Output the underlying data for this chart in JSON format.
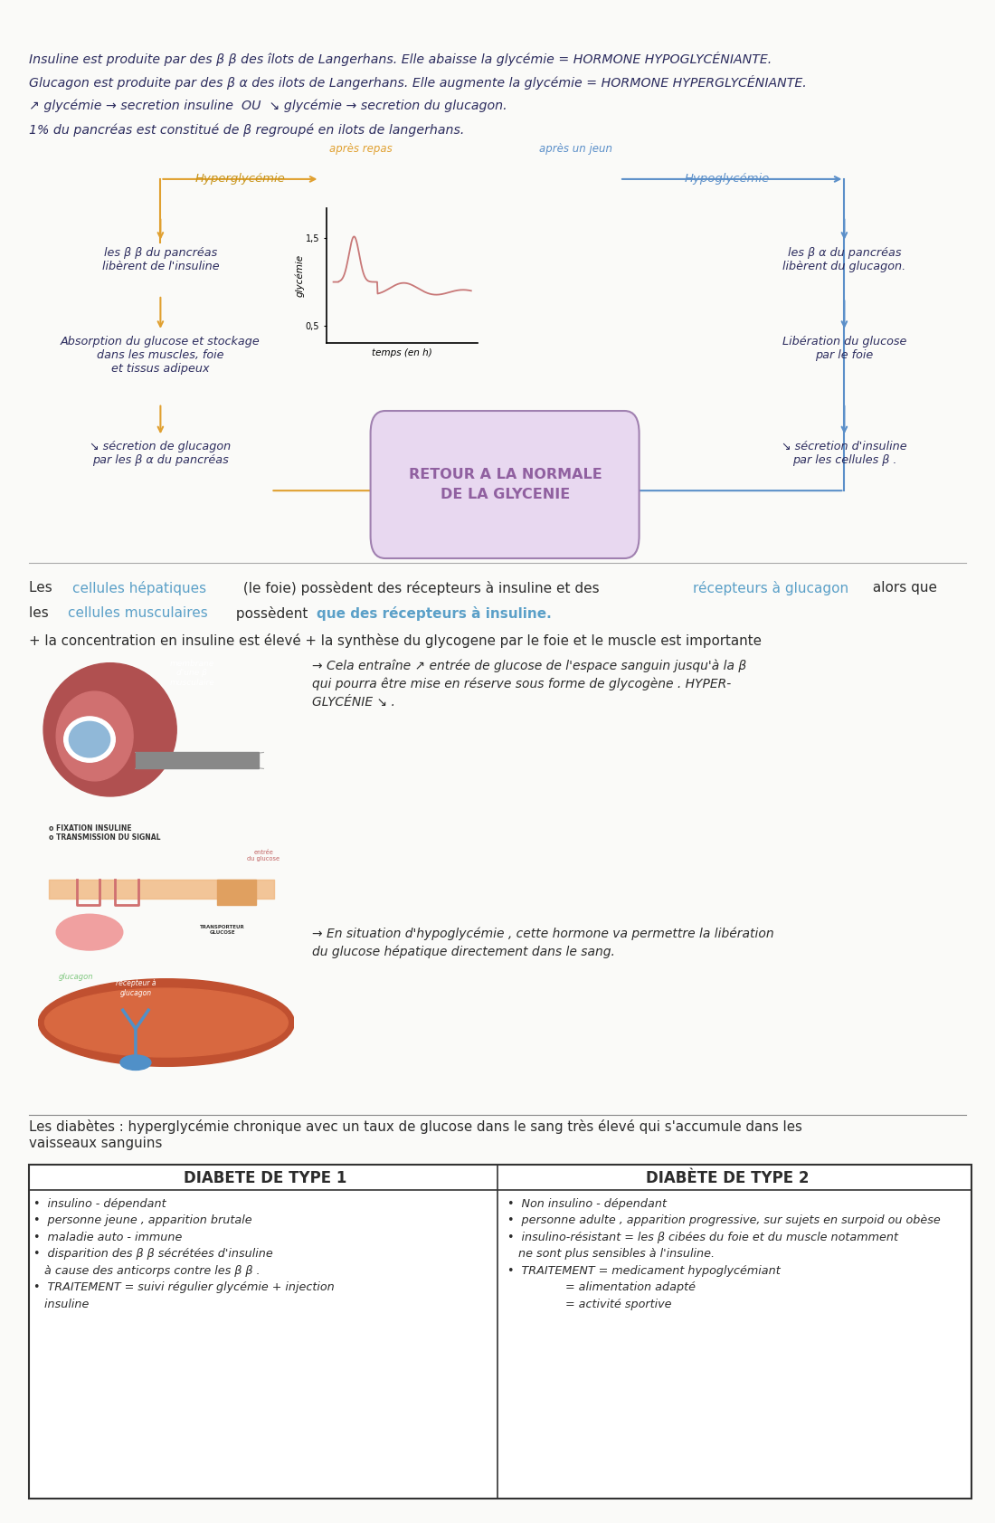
{
  "bg_color": "#fafaf8",
  "page_width": 10.8,
  "page_height": 16.63,
  "line1": "Insuline est produite par des β β des îlots de Langerhans. Elle abaisse la glycémie = HORMONE HYPOGLYCÉNIANTE.",
  "line2": "Glucagon est produite par des β α des ilots de Langerhans. Elle augmente la glycémie = HORMONE HYPERGLYCÉNIANTE.",
  "line3": "↗ glycémie → secretion insuline  OU  ↘ glycémie → secretion du glucagon.",
  "line4": "1% du pancréas est constitué de β regroupé en ilots de langerhans.",
  "text_color": "#2c2c5e",
  "orange": "#c8941a",
  "orange_arrow": "#e0a030",
  "blue": "#5b8fc9",
  "dark_text": "#2c2c2c",
  "retour_text": "RETOUR A LA NORMALE\nDE LA GLYCENIE",
  "retour_boxcolor": "#e8d8f0",
  "retour_edgecolor": "#a080b0",
  "retour_textcolor": "#9060a0",
  "annot1": "→ Cela entraîne ↗ entrée de glucose de l'espace sanguin jusqu'à la β\nqui pourra être mise en réserve sous forme de glycogène . HYPER-\nGLYCÉNIE ↘ .",
  "annot2": "→ En situation d'hypoglycémie , cette hormone va permettre la libération\ndu glucose hépatique directement dans le sang.",
  "diabetes_intro": "Les diabètes : hyperglycémie chronique avec un taux de glucose dans le sang très élevé qui s'accumule dans les\nvaisseaux sanguins",
  "diabetes_type1": "•  insulino - dépendant\n•  personne jeune , apparition brutale\n•  maladie auto - immune\n•  disparition des β β sécrétées d'insuline\n   à cause des anticorps contre les β β .\n•  TRAITEMENT = suivi régulier glycémie + injection\n   insuline",
  "diabetes_type2": "•  Non insulino - dépendant\n•  personne adulte , apparition progressive, sur sujets en surpoid ou obèse\n•  insulino-résistant = les β cibées du foie et du muscle notamment\n   ne sont plus sensibles à l'insuline.\n•  TRAITEMENT = medicament hypoglycémiant\n                = alimentation adapté\n                = activité sportive"
}
